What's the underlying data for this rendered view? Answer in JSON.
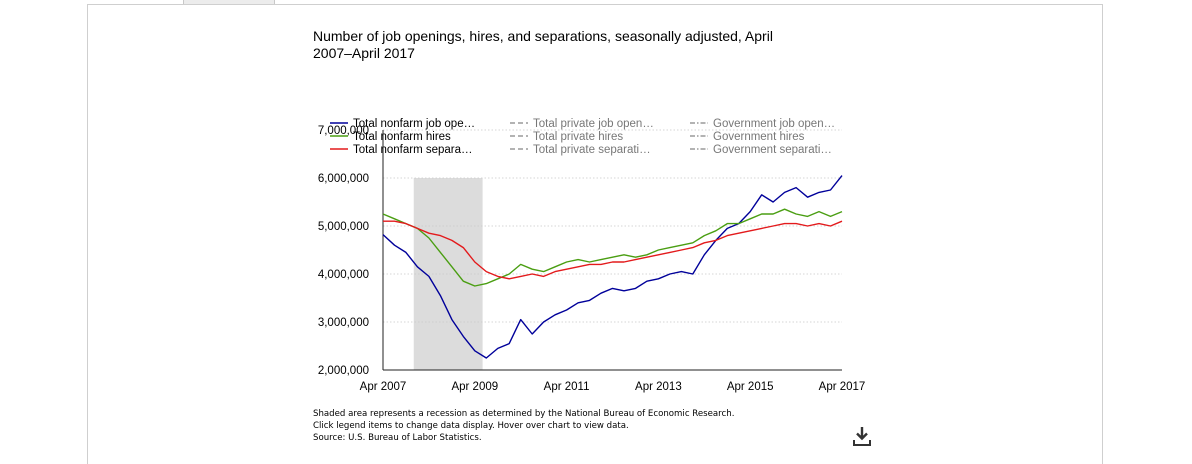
{
  "chart_data": {
    "type": "line",
    "title": "Number of job openings, hires, and separations, seasonally adjusted, April 2007–April 2017",
    "xlabel": "",
    "ylabel": "",
    "x_ticks": [
      "Apr 2007",
      "Apr 2009",
      "Apr 2011",
      "Apr 2013",
      "Apr 2015",
      "Apr 2017"
    ],
    "y_ticks": [
      "2,000,000",
      "3,000,000",
      "4,000,000",
      "5,000,000",
      "6,000,000",
      "7,000,000"
    ],
    "xlim": [
      2007.25,
      2017.25
    ],
    "ylim": [
      2000000,
      7000000
    ],
    "grid": true,
    "legend_position": "top",
    "recession_shade": {
      "start": 2007.92,
      "end": 2009.42,
      "color": "#dcdcdc"
    },
    "legend": [
      {
        "label": "Total nonfarm job ope…",
        "style": "solid",
        "color": "#00009a"
      },
      {
        "label": "Total nonfarm hires",
        "style": "solid",
        "color": "#4a9e12"
      },
      {
        "label": "Total nonfarm separa…",
        "style": "solid",
        "color": "#e31a1c"
      },
      {
        "label": "Total private job open…",
        "style": "dash",
        "color": "#9a9a9a"
      },
      {
        "label": "Total private hires",
        "style": "dash",
        "color": "#9a9a9a"
      },
      {
        "label": "Total private separati…",
        "style": "dash",
        "color": "#9a9a9a"
      },
      {
        "label": "Government job open…",
        "style": "dashdot",
        "color": "#9a9a9a"
      },
      {
        "label": "Government hires",
        "style": "dashdot",
        "color": "#9a9a9a"
      },
      {
        "label": "Government separati…",
        "style": "dashdot",
        "color": "#9a9a9a"
      }
    ],
    "series": [
      {
        "color": "#00009a",
        "x": [
          2007.25,
          2007.5,
          2007.75,
          2008.0,
          2008.25,
          2008.5,
          2008.75,
          2009.0,
          2009.25,
          2009.5,
          2009.75,
          2010.0,
          2010.25,
          2010.5,
          2010.75,
          2011.0,
          2011.25,
          2011.5,
          2011.75,
          2012.0,
          2012.25,
          2012.5,
          2012.75,
          2013.0,
          2013.25,
          2013.5,
          2013.75,
          2014.0,
          2014.25,
          2014.5,
          2014.75,
          2015.0,
          2015.25,
          2015.5,
          2015.75,
          2016.0,
          2016.25,
          2016.5,
          2016.75,
          2017.0,
          2017.25
        ],
        "values": [
          4820000,
          4600000,
          4450000,
          4150000,
          3950000,
          3550000,
          3050000,
          2700000,
          2400000,
          2250000,
          2450000,
          2550000,
          3050000,
          2750000,
          3000000,
          3150000,
          3250000,
          3400000,
          3450000,
          3600000,
          3700000,
          3650000,
          3700000,
          3850000,
          3900000,
          4000000,
          4050000,
          4000000,
          4400000,
          4700000,
          4950000,
          5050000,
          5300000,
          5650000,
          5500000,
          5700000,
          5800000,
          5600000,
          5700000,
          5750000,
          6050000
        ]
      },
      {
        "color": "#4a9e12",
        "x": [
          2007.25,
          2007.5,
          2007.75,
          2008.0,
          2008.25,
          2008.5,
          2008.75,
          2009.0,
          2009.25,
          2009.5,
          2009.75,
          2010.0,
          2010.25,
          2010.5,
          2010.75,
          2011.0,
          2011.25,
          2011.5,
          2011.75,
          2012.0,
          2012.25,
          2012.5,
          2012.75,
          2013.0,
          2013.25,
          2013.5,
          2013.75,
          2014.0,
          2014.25,
          2014.5,
          2014.75,
          2015.0,
          2015.25,
          2015.5,
          2015.75,
          2016.0,
          2016.25,
          2016.5,
          2016.75,
          2017.0,
          2017.25
        ],
        "values": [
          5250000,
          5150000,
          5050000,
          4950000,
          4750000,
          4450000,
          4150000,
          3850000,
          3750000,
          3800000,
          3900000,
          4000000,
          4200000,
          4100000,
          4050000,
          4150000,
          4250000,
          4300000,
          4250000,
          4300000,
          4350000,
          4400000,
          4350000,
          4400000,
          4500000,
          4550000,
          4600000,
          4650000,
          4800000,
          4900000,
          5050000,
          5050000,
          5150000,
          5250000,
          5250000,
          5350000,
          5250000,
          5200000,
          5300000,
          5200000,
          5300000
        ]
      },
      {
        "color": "#e31a1c",
        "x": [
          2007.25,
          2007.5,
          2007.75,
          2008.0,
          2008.25,
          2008.5,
          2008.75,
          2009.0,
          2009.25,
          2009.5,
          2009.75,
          2010.0,
          2010.25,
          2010.5,
          2010.75,
          2011.0,
          2011.25,
          2011.5,
          2011.75,
          2012.0,
          2012.25,
          2012.5,
          2012.75,
          2013.0,
          2013.25,
          2013.5,
          2013.75,
          2014.0,
          2014.25,
          2014.5,
          2014.75,
          2015.0,
          2015.25,
          2015.5,
          2015.75,
          2016.0,
          2016.25,
          2016.5,
          2016.75,
          2017.0,
          2017.25
        ],
        "values": [
          5100000,
          5100000,
          5050000,
          4950000,
          4850000,
          4800000,
          4700000,
          4550000,
          4250000,
          4050000,
          3950000,
          3900000,
          3950000,
          4000000,
          3950000,
          4050000,
          4100000,
          4150000,
          4200000,
          4200000,
          4250000,
          4250000,
          4300000,
          4350000,
          4400000,
          4450000,
          4500000,
          4550000,
          4650000,
          4700000,
          4800000,
          4850000,
          4900000,
          4950000,
          5000000,
          5050000,
          5050000,
          5000000,
          5050000,
          5000000,
          5100000
        ]
      }
    ]
  },
  "footnotes": [
    "Shaded area represents a recession as determined by the National Bureau of Economic Research.",
    "Click legend items to change data display. Hover over chart to view data.",
    "Source: U.S. Bureau of Labor Statistics."
  ],
  "download_icon": "download-icon"
}
